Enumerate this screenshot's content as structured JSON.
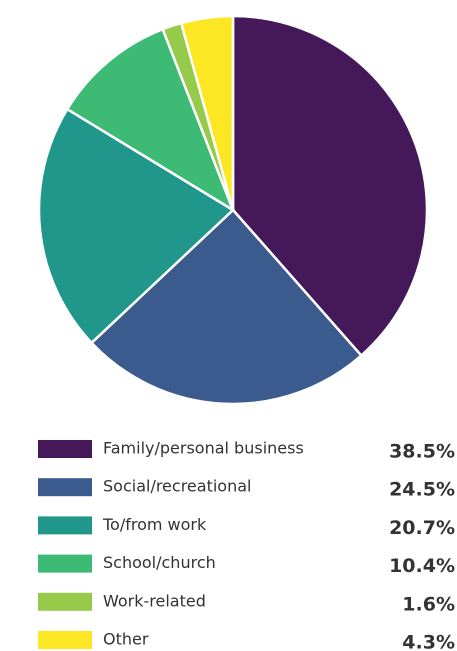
{
  "chart_data": {
    "type": "pie",
    "categories": [
      "Family/personal business",
      "Social/recreational",
      "To/from work",
      "School/church",
      "Work-related",
      "Other"
    ],
    "values": [
      38.5,
      24.5,
      20.7,
      10.4,
      1.6,
      4.3
    ],
    "value_labels": [
      "38.5%",
      "24.5%",
      "20.7%",
      "10.4%",
      "1.6%",
      "4.3%"
    ],
    "colors": [
      "#45185a",
      "#3b5a8d",
      "#21968b",
      "#3dba74",
      "#95ca4b",
      "#fde725"
    ]
  }
}
